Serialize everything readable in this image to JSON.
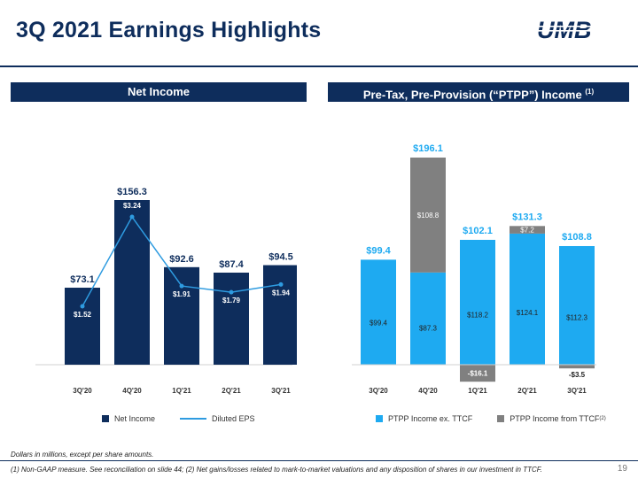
{
  "slide": {
    "title": "3Q 2021 Earnings Highlights",
    "logo_text": "UMB",
    "note": "Dollars in millions, except per share amounts.",
    "footnote": "(1) Non-GAAP measure. See reconciliation on slide 44; (2) Net gains/losses related to mark-to-market valuations and any disposition of shares in our investment in TTCF.",
    "page_number": "19"
  },
  "colors": {
    "navy": "#0e2d5c",
    "accent": "#1eaaf1",
    "gray": "#808080",
    "eps_line": "#2e9be0"
  },
  "left_panel": {
    "header": "Net Income",
    "legend": {
      "bar": "Net Income",
      "line": "Diluted EPS"
    }
  },
  "right_panel": {
    "header": "Pre-Tax, Pre-Provision (“PTPP”) Income",
    "header_sup": "(1)",
    "legend": {
      "a": "PTPP Income ex. TTCF",
      "b": "PTPP Income from TTCF",
      "b_sup": "(2)"
    }
  },
  "chart_data": [
    {
      "type": "bar",
      "categories": [
        "3Q'20",
        "4Q'20",
        "1Q'21",
        "2Q'21",
        "3Q'21"
      ],
      "series": [
        {
          "name": "Net Income",
          "values": [
            73.1,
            156.3,
            92.6,
            87.4,
            94.5
          ],
          "labels": [
            "$73.1",
            "$156.3",
            "$92.6",
            "$87.4",
            "$94.5"
          ]
        },
        {
          "name": "Diluted EPS",
          "type": "line",
          "values": [
            1.52,
            3.24,
            1.91,
            1.79,
            1.94
          ],
          "labels": [
            "$1.52",
            "$3.24",
            "$1.91",
            "$1.79",
            "$1.94"
          ]
        }
      ]
    },
    {
      "type": "bar",
      "stacked": true,
      "categories": [
        "3Q'20",
        "4Q'20",
        "1Q'21",
        "2Q'21",
        "3Q'21"
      ],
      "series": [
        {
          "name": "PTPP Income ex. TTCF",
          "values": [
            99.4,
            87.3,
            118.2,
            124.1,
            112.3
          ],
          "labels": [
            "$99.4",
            "$87.3",
            "$118.2",
            "$124.1",
            "$112.3"
          ]
        },
        {
          "name": "PTPP Income from TTCF",
          "values": [
            0,
            108.8,
            -16.1,
            7.2,
            -3.5
          ],
          "labels": [
            "",
            "$108.8",
            "-$16.1",
            "$7.2",
            "-$3.5"
          ]
        }
      ],
      "totals": [
        99.4,
        196.1,
        102.1,
        131.3,
        108.8
      ],
      "total_labels": [
        "$99.4",
        "$196.1",
        "$102.1",
        "$131.3",
        "$108.8"
      ]
    }
  ]
}
